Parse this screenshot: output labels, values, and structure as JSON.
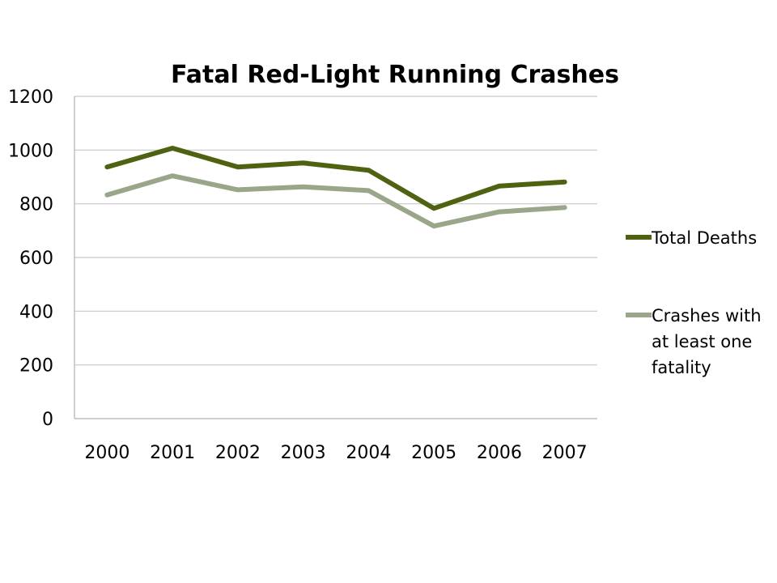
{
  "chart_data": {
    "type": "line",
    "title": "Fatal Red-Light Running Crashes",
    "xlabel": "",
    "ylabel": "",
    "categories": [
      "2000",
      "2001",
      "2002",
      "2003",
      "2004",
      "2005",
      "2006",
      "2007"
    ],
    "ylim": [
      0,
      1200
    ],
    "yticks": [
      0,
      200,
      400,
      600,
      800,
      1000,
      1200
    ],
    "grid": true,
    "legend_position": "right",
    "series": [
      {
        "name": "Total Deaths",
        "color": "#4f6212",
        "values": [
          937,
          1007,
          937,
          952,
          925,
          783,
          866,
          881
        ]
      },
      {
        "name": "Crashes with at least one fatality",
        "color": "#9aa68a",
        "values": [
          833,
          904,
          852,
          863,
          849,
          717,
          770,
          786
        ]
      }
    ]
  }
}
